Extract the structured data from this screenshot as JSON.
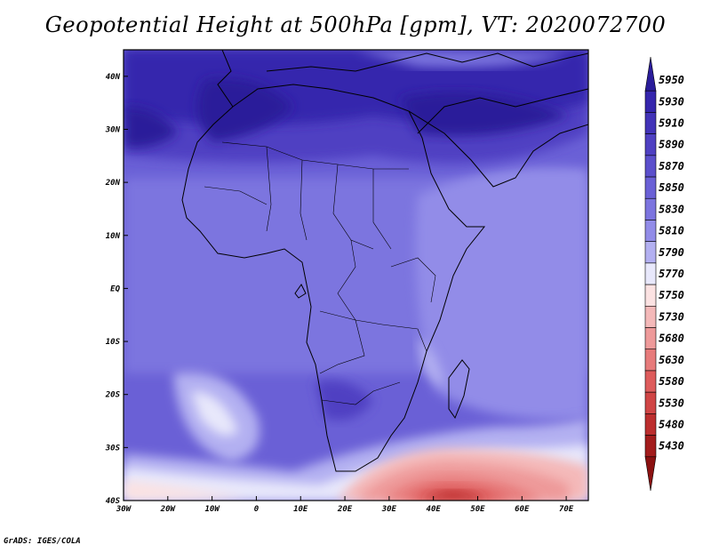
{
  "title": "Geopotential Height at 500hPa [gpm], VT: 2020072700",
  "credit": "GrADS: IGES/COLA",
  "map": {
    "projection": "latlon",
    "lon_range": [
      -30,
      75
    ],
    "lat_range": [
      -40,
      45
    ],
    "lon_ticks": [
      "30W",
      "20W",
      "10W",
      "0",
      "10E",
      "20E",
      "30E",
      "40E",
      "50E",
      "60E",
      "70E"
    ],
    "lat_ticks": [
      "40S",
      "30S",
      "20S",
      "10S",
      "EQ",
      "10N",
      "20N",
      "30N",
      "40N"
    ],
    "lon_tick_values": [
      -30,
      -20,
      -10,
      0,
      10,
      20,
      30,
      40,
      50,
      60,
      70
    ],
    "lat_tick_values": [
      -40,
      -30,
      -20,
      -10,
      0,
      10,
      20,
      30,
      40
    ]
  },
  "colorbar": {
    "levels": [
      "5950",
      "5930",
      "5910",
      "5890",
      "5870",
      "5850",
      "5830",
      "5810",
      "5790",
      "5770",
      "5750",
      "5730",
      "5680",
      "5630",
      "5580",
      "5530",
      "5480",
      "5430"
    ],
    "colors": [
      "#2a1c9a",
      "#3526ad",
      "#4233b8",
      "#4f40c2",
      "#5b4fcc",
      "#6a60d6",
      "#7c74df",
      "#928ce8",
      "#b3b0f1",
      "#e8e8fb",
      "#fbe2e2",
      "#f4b9b9",
      "#ee9a9a",
      "#e77b7b",
      "#de5c5c",
      "#d04545",
      "#bc2e2e",
      "#a31c1c",
      "#8b1111"
    ],
    "extend": "both"
  }
}
